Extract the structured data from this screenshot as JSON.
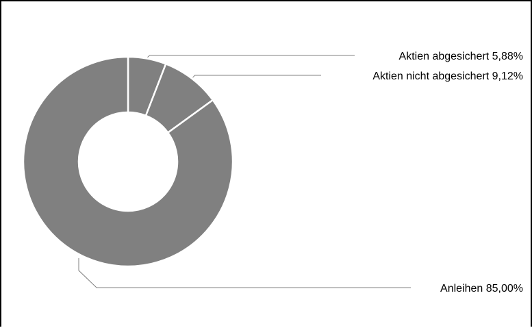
{
  "chart_data": {
    "type": "pie",
    "variant": "donut",
    "title": "",
    "slices": [
      {
        "label": "Aktien abgesichert 5,88%",
        "value": 5.88,
        "color": "#808080"
      },
      {
        "label": "Aktien nicht abgesichert 9,12%",
        "value": 9.12,
        "color": "#808080"
      },
      {
        "label": "Anleihen 85,00%",
        "value": 85.0,
        "color": "#808080"
      }
    ],
    "legend": "none",
    "grid": false
  },
  "colors": {
    "slice_fill": "#808080",
    "slice_border": "#ffffff",
    "leader_line": "#808080",
    "text": "#000000",
    "frame": "#000000"
  }
}
